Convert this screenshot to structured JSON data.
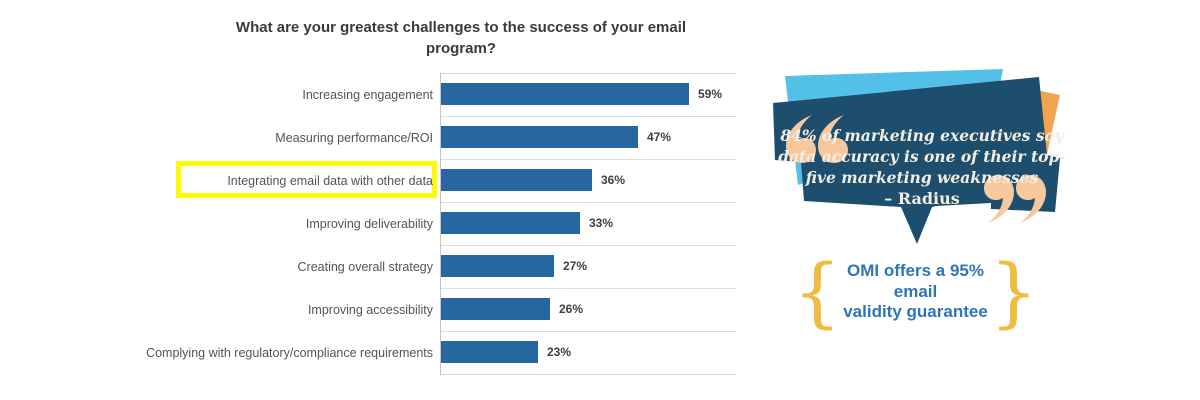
{
  "chart": {
    "title": "What are your greatest challenges to the success of your email program?",
    "highlight_index": 2,
    "bar_color": "#2667a2",
    "highlight_color": "#fdfc00",
    "label_color": "#4d565e",
    "value_label_color": "#3f3f3f"
  },
  "chart_data": {
    "type": "bar",
    "orientation": "horizontal",
    "title": "What are your greatest challenges to the success of your email program?",
    "categories": [
      "Increasing engagement",
      "Measuring performance/ROI",
      "Integrating email data with other data",
      "Improving deliverability",
      "Creating overall strategy",
      "Improving accessibility",
      "Complying with regulatory/compliance requirements"
    ],
    "values": [
      59,
      47,
      36,
      33,
      27,
      26,
      23
    ],
    "value_labels": [
      "59%",
      "47%",
      "36%",
      "33%",
      "27%",
      "26%",
      "23%"
    ],
    "xlim": [
      0,
      70
    ],
    "xlabel": "",
    "ylabel": "",
    "grid": "row separator lines, light gray",
    "legend": "none",
    "highlighted_category": "Integrating email data with other data",
    "highlight_style": "yellow rectangle around category label"
  },
  "callout": {
    "quote_lines": [
      "84% of marketing executives say",
      "data accuracy is one of their top-",
      "five marketing weaknesses"
    ],
    "attribution": "– Radius",
    "offer_line1": "OMI offers a 95% email",
    "offer_line2": "validity guarantee",
    "brace_left": "{",
    "brace_right": "}",
    "colors": {
      "bubble": "#1e4e6d",
      "accent_left": "#53c0e8",
      "accent_right": "#f2a44e",
      "quote_marks": "#f7c89d",
      "quote_text": "#f3eee3",
      "offer_text": "#2e75b6",
      "braces": "#eebc3e"
    }
  }
}
